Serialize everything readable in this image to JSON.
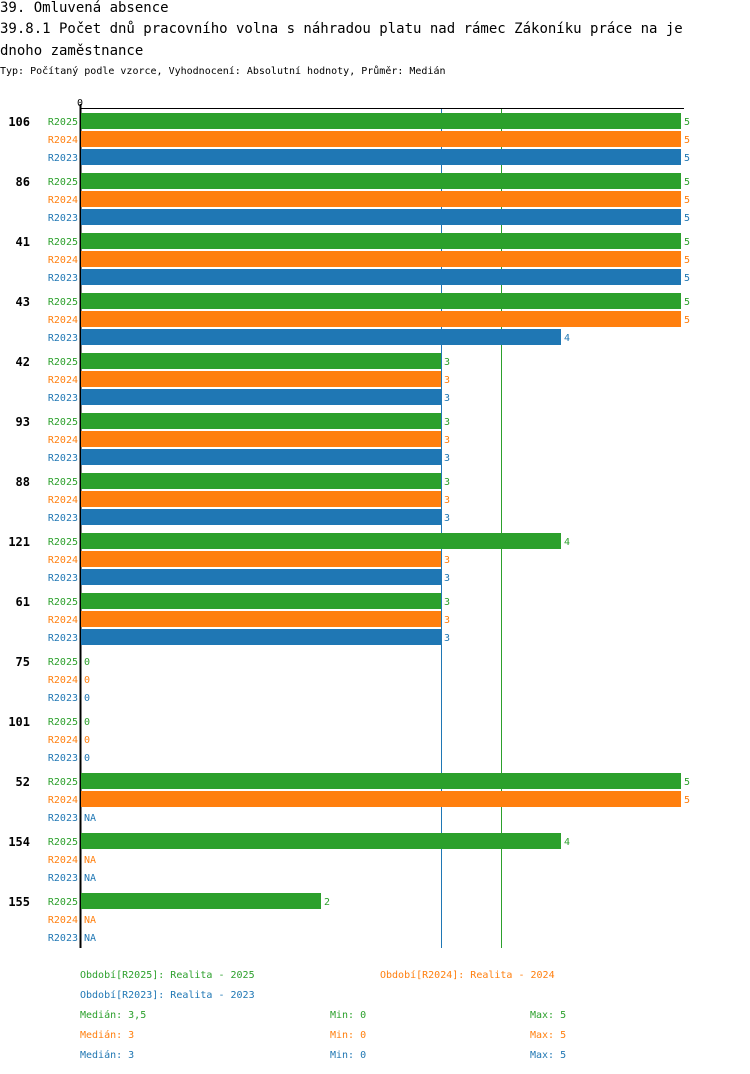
{
  "header": {
    "line1": "39. Omluvená absence",
    "line2": "39.8.1 Počet dnů pracovního volna s náhradou platu nad rámec Zákoníku práce na je",
    "line3": "dnoho zaměstnance",
    "subtitle": "Typ: Počítaný podle vzorce, Vyhodnocení: Absolutní hodnoty, Průměr: Medián"
  },
  "colors": {
    "R2025": "#2ca02c",
    "R2024": "#ff7f0e",
    "R2023": "#1f77b4"
  },
  "chart_data": {
    "type": "bar",
    "orientation": "horizontal",
    "axis_zero_label": "0",
    "xlim": [
      0,
      5
    ],
    "series_names": [
      "R2025",
      "R2024",
      "R2023"
    ],
    "categories": [
      "106",
      "86",
      "41",
      "43",
      "42",
      "93",
      "88",
      "121",
      "61",
      "75",
      "101",
      "52",
      "154",
      "155"
    ],
    "series": [
      {
        "name": "R2025",
        "values": [
          5,
          5,
          5,
          5,
          3,
          3,
          3,
          4,
          3,
          0,
          0,
          5,
          4,
          2
        ]
      },
      {
        "name": "R2024",
        "values": [
          5,
          5,
          5,
          5,
          3,
          3,
          3,
          3,
          3,
          0,
          0,
          5,
          null,
          null
        ]
      },
      {
        "name": "R2023",
        "values": [
          5,
          5,
          5,
          4,
          3,
          3,
          3,
          3,
          3,
          0,
          0,
          null,
          null,
          null
        ]
      }
    ],
    "na_label": "NA",
    "reference_lines": [
      {
        "series": "R2023",
        "value": 3
      },
      {
        "series": "R2025",
        "value": 3.5
      }
    ]
  },
  "legend": {
    "period_2025": "Období[R2025]: Realita - 2025",
    "period_2024": "Období[R2024]: Realita - 2024",
    "period_2023": "Období[R2023]: Realita - 2023",
    "stats": [
      {
        "median": "Medián: 3,5",
        "min": "Min: 0",
        "max": "Max: 5"
      },
      {
        "median": "Medián: 3",
        "min": "Min: 0",
        "max": "Max: 5"
      },
      {
        "median": "Medián: 3",
        "min": "Min: 0",
        "max": "Max: 5"
      }
    ]
  }
}
